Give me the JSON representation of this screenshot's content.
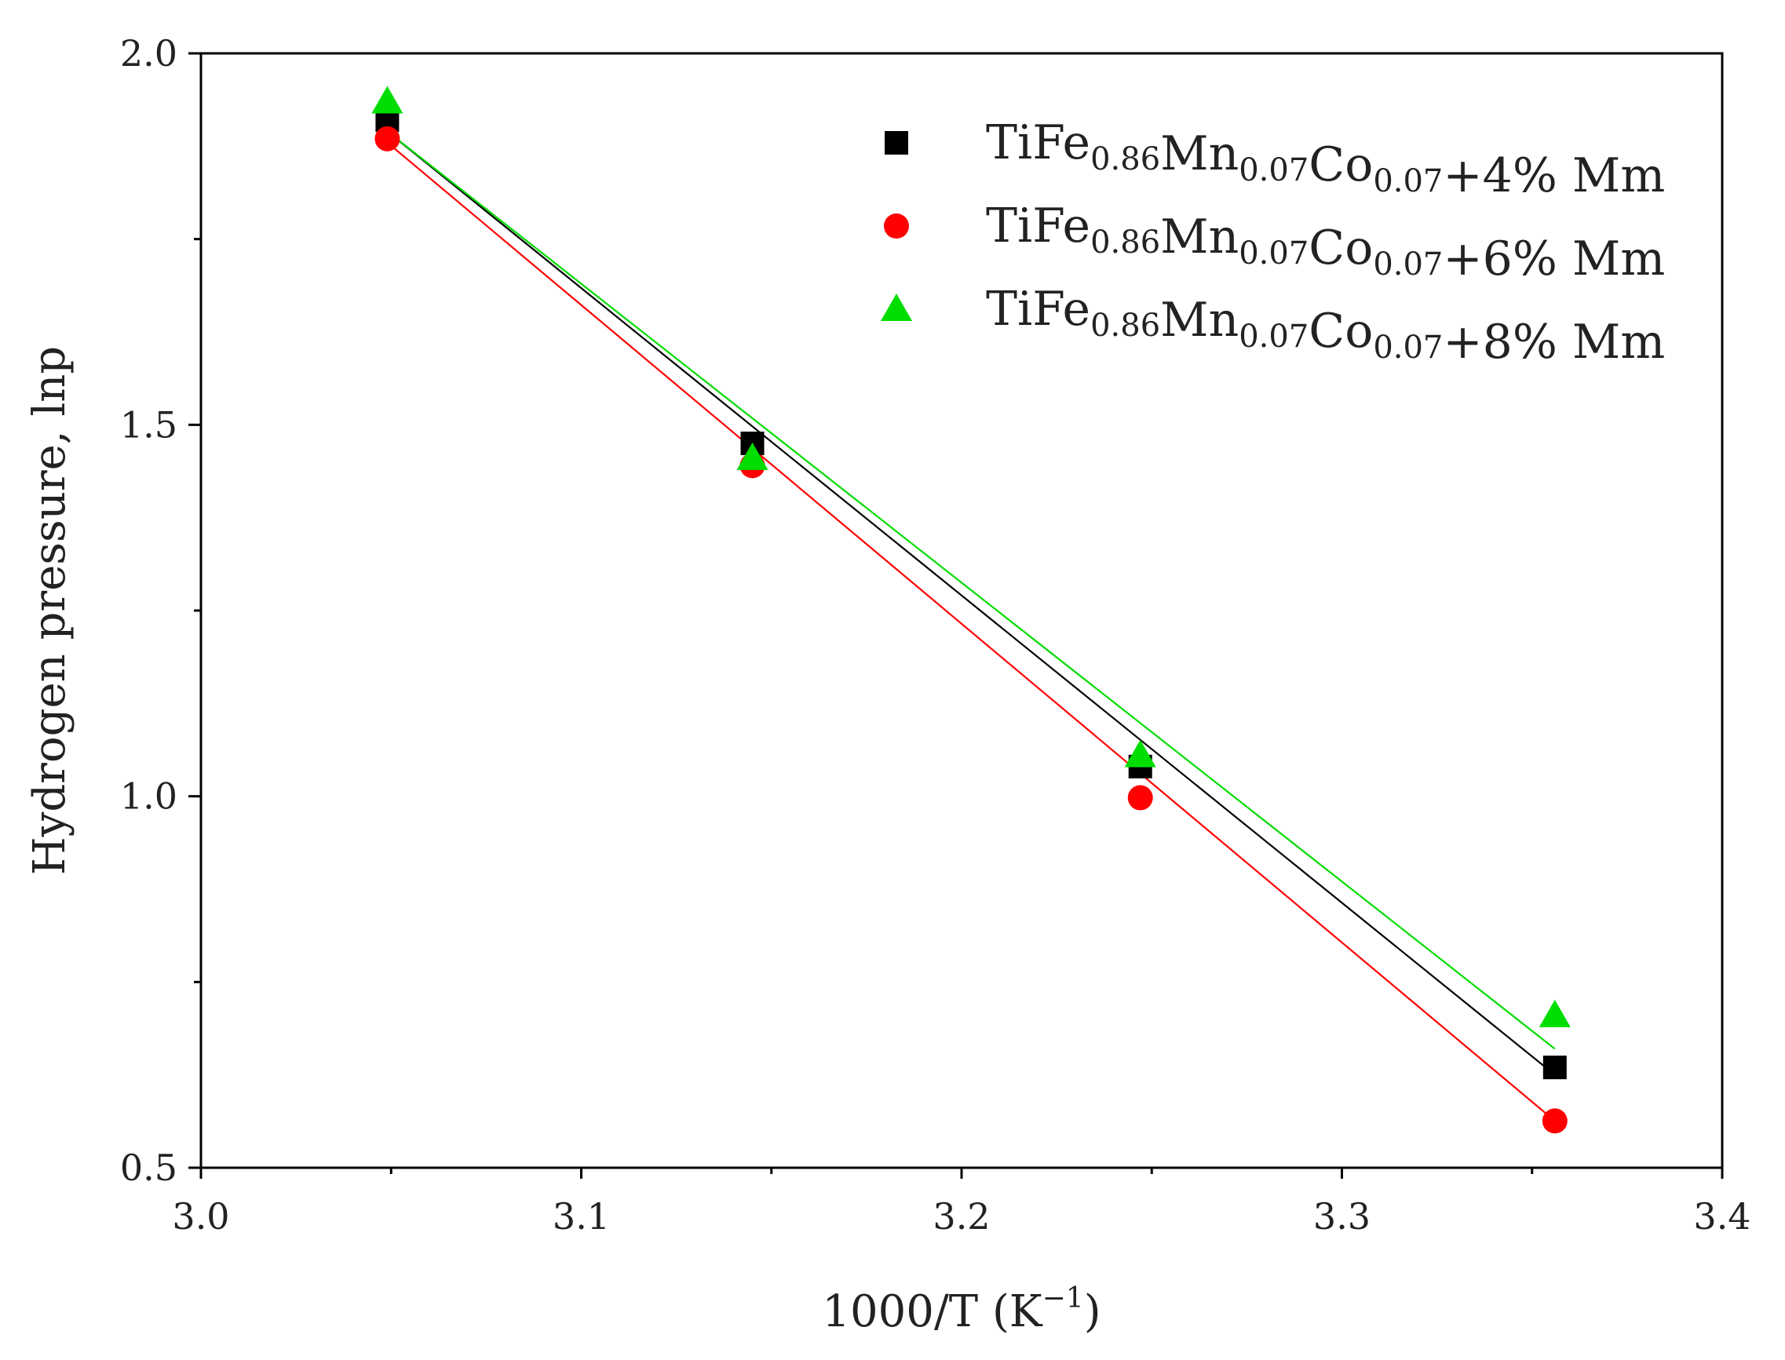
{
  "chart_data": {
    "type": "scatter",
    "title": "",
    "xlabel": {
      "main": "1000/T (K",
      "sup": "−1",
      "close": ")"
    },
    "ylabel": "Hydrogen pressure, lnp",
    "xlim": [
      3.0,
      3.4
    ],
    "ylim": [
      0.5,
      2.0
    ],
    "x_ticks": [
      "3.0",
      "3.1",
      "3.2",
      "3.3",
      "3.4"
    ],
    "y_ticks": [
      "0.5",
      "1.0",
      "1.5",
      "2.0"
    ],
    "grid": false,
    "legend_position": "top-right",
    "series": [
      {
        "name": "TiFe0.86Mn0.07Co0.07+4% Mm",
        "name_parts": [
          {
            "t": "TiFe",
            "sub": "0.86"
          },
          {
            "t": "Mn",
            "sub": "0.07"
          },
          {
            "t": "Co",
            "sub": "0.07"
          },
          {
            "t": "+4% Mm",
            "sub": ""
          }
        ],
        "marker": "square",
        "color": "#000000",
        "x": [
          3.049,
          3.145,
          3.247,
          3.356
        ],
        "y": [
          1.91,
          1.475,
          1.04,
          0.635
        ],
        "fit": {
          "x": [
            3.049,
            3.356
          ],
          "y": [
            1.895,
            0.625
          ]
        }
      },
      {
        "name": "TiFe0.86Mn0.07Co0.07+6% Mm",
        "name_parts": [
          {
            "t": "TiFe",
            "sub": "0.86"
          },
          {
            "t": "Mn",
            "sub": "0.07"
          },
          {
            "t": "Co",
            "sub": "0.07"
          },
          {
            "t": "+6% Mm",
            "sub": ""
          }
        ],
        "marker": "circle",
        "color": "#ff0000",
        "x": [
          3.049,
          3.145,
          3.247,
          3.356
        ],
        "y": [
          1.885,
          1.445,
          0.998,
          0.563
        ],
        "fit": {
          "x": [
            3.049,
            3.356
          ],
          "y": [
            1.88,
            0.563
          ]
        }
      },
      {
        "name": "TiFe0.86Mn0.07Co0.07+8% Mm",
        "name_parts": [
          {
            "t": "TiFe",
            "sub": "0.86"
          },
          {
            "t": "Mn",
            "sub": "0.07"
          },
          {
            "t": "Co",
            "sub": "0.07"
          },
          {
            "t": "+8% Mm",
            "sub": ""
          }
        ],
        "marker": "triangle",
        "color": "#00dd00",
        "x": [
          3.049,
          3.145,
          3.247,
          3.356
        ],
        "y": [
          1.935,
          1.455,
          1.055,
          0.705
        ],
        "fit": {
          "x": [
            3.049,
            3.356
          ],
          "y": [
            1.895,
            0.66
          ]
        }
      }
    ]
  }
}
